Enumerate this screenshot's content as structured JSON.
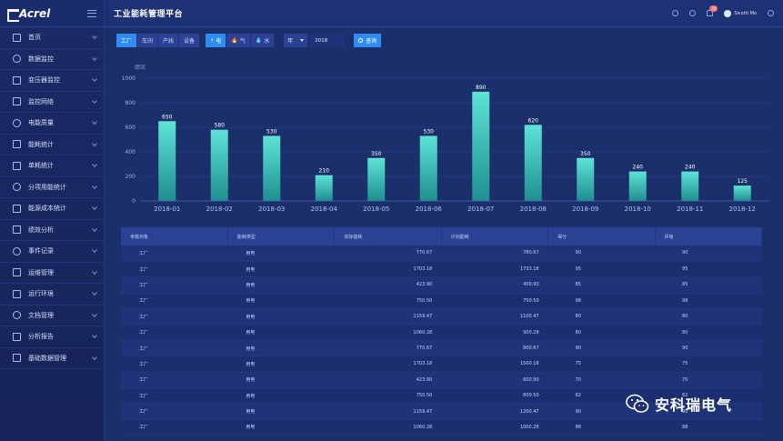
{
  "brand": {
    "logo_text": "Acrel"
  },
  "header": {
    "title": "工业能耗管理平台",
    "notification_count": "10",
    "user_name": "Sicotti Mo"
  },
  "sidebar": {
    "items": [
      {
        "label": "首页",
        "icon": "home-icon"
      },
      {
        "label": "数据监控",
        "icon": "monitor-icon"
      },
      {
        "label": "变压器监控",
        "icon": "transformer-icon"
      },
      {
        "label": "监控网络",
        "icon": "network-icon"
      },
      {
        "label": "电能质量",
        "icon": "power-quality-icon"
      },
      {
        "label": "能耗统计",
        "icon": "bar-chart-icon"
      },
      {
        "label": "单耗统计",
        "icon": "unit-consumption-icon"
      },
      {
        "label": "分项用能统计",
        "icon": "location-icon"
      },
      {
        "label": "能源成本统计",
        "icon": "cost-icon"
      },
      {
        "label": "绩效分析",
        "icon": "performance-icon"
      },
      {
        "label": "事件记录",
        "icon": "event-icon"
      },
      {
        "label": "运维管理",
        "icon": "maintenance-icon"
      },
      {
        "label": "运行环境",
        "icon": "environment-icon"
      },
      {
        "label": "文档管理",
        "icon": "document-icon"
      },
      {
        "label": "分析报告",
        "icon": "report-icon"
      },
      {
        "label": "基础数据管理",
        "icon": "database-icon"
      }
    ]
  },
  "toolbar": {
    "scope_tabs": [
      "工厂",
      "车间",
      "产线",
      "设备"
    ],
    "scope_active": 0,
    "energy_tabs": [
      {
        "label": "电",
        "icon": "⚡"
      },
      {
        "label": "气",
        "icon": "🔥"
      },
      {
        "label": "水",
        "icon": "💧"
      }
    ],
    "energy_active": 0,
    "period_value": "年",
    "year_value": "2018",
    "query_label": "查询"
  },
  "chart_data": {
    "type": "bar",
    "ylabel": "绩效",
    "categories": [
      "2018-01",
      "2018-02",
      "2018-03",
      "2018-04",
      "2018-05",
      "2018-06",
      "2018-07",
      "2018-08",
      "2018-09",
      "2018-10",
      "2018-11",
      "2018-12"
    ],
    "values": [
      650,
      580,
      530,
      210,
      350,
      530,
      890,
      620,
      350,
      240,
      240,
      125
    ],
    "ylim": [
      0,
      1000
    ],
    "yticks": [
      0,
      200,
      400,
      600,
      800,
      1000
    ],
    "grid": true,
    "colors": {
      "bar_top": "#5ee3d6",
      "bar_bottom": "#1e8f8f"
    }
  },
  "table": {
    "columns": [
      "考核对象",
      "能耗类型",
      "实际能耗",
      "计划能耗",
      "得分",
      "评级"
    ],
    "rows": [
      [
        "工厂",
        "用电",
        "770.67",
        "780.67",
        "90",
        "90"
      ],
      [
        "工厂",
        "用电",
        "1703.18",
        "1733.18",
        "95",
        "95"
      ],
      [
        "工厂",
        "用电",
        "423.90",
        "400.90",
        "85",
        "85"
      ],
      [
        "工厂",
        "用电",
        "750.50",
        "750.50",
        "98",
        "98"
      ],
      [
        "工厂",
        "用电",
        "1159.47",
        "1100.47",
        "80",
        "80"
      ],
      [
        "工厂",
        "用电",
        "1060.28",
        "900.28",
        "80",
        "80"
      ],
      [
        "工厂",
        "用电",
        "770.67",
        "800.67",
        "90",
        "90"
      ],
      [
        "工厂",
        "用电",
        "1703.18",
        "1500.18",
        "75",
        "75"
      ],
      [
        "工厂",
        "用电",
        "423.90",
        "600.90",
        "70",
        "70"
      ],
      [
        "工厂",
        "用电",
        "750.50",
        "800.50",
        "82",
        "82"
      ],
      [
        "工厂",
        "用电",
        "1159.47",
        "1200.47",
        "90",
        "90"
      ],
      [
        "工厂",
        "用电",
        "1060.28",
        "1000.28",
        "88",
        "88"
      ]
    ]
  },
  "watermark": {
    "text": "安科瑞电气"
  }
}
